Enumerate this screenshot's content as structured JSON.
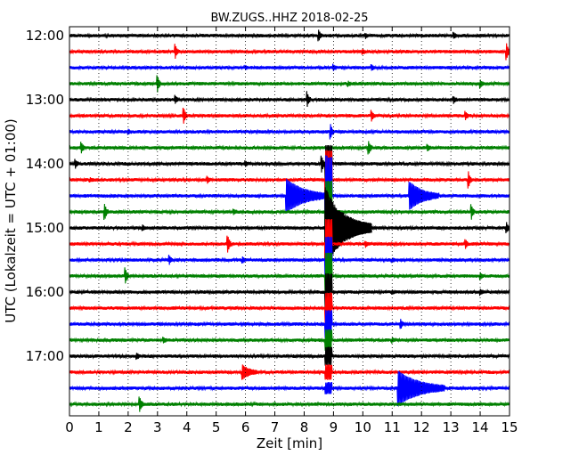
{
  "chart_data": {
    "type": "line",
    "title": "BW.ZUGS..HHZ 2018-02-25",
    "xlabel": "Zeit  [min]",
    "ylabel": "UTC (Lokalzeit = UTC + 01:00)",
    "xlim": [
      0,
      15
    ],
    "x_ticks": [
      "0",
      "1",
      "2",
      "3",
      "4",
      "5",
      "6",
      "7",
      "8",
      "9",
      "10",
      "11",
      "12",
      "13",
      "14",
      "15"
    ],
    "y_ticks": [
      "12:00",
      "13:00",
      "14:00",
      "15:00",
      "16:00",
      "17:00"
    ],
    "grid": "vertical dotted",
    "trace_interval_min": 15,
    "trace_colors": [
      "#000000",
      "#ff0000",
      "#0000ff",
      "#008000"
    ],
    "traces": [
      {
        "start": "12:00",
        "events": [
          {
            "x": 8.5,
            "amp": 0.6
          },
          {
            "x": 10.1,
            "amp": 0.25
          },
          {
            "x": 13.1,
            "amp": 0.3
          }
        ]
      },
      {
        "start": "12:15",
        "events": [
          {
            "x": 3.6,
            "amp": 0.9
          },
          {
            "x": 14.9,
            "amp": 1.0
          },
          {
            "x": 10.0,
            "amp": 0.3
          }
        ]
      },
      {
        "start": "12:30",
        "events": [
          {
            "x": 9.0,
            "amp": 0.35
          },
          {
            "x": 10.3,
            "amp": 0.3
          },
          {
            "x": 6.0,
            "amp": 0.2
          }
        ]
      },
      {
        "start": "12:45",
        "events": [
          {
            "x": 3.0,
            "amp": 1.0
          },
          {
            "x": 14.0,
            "amp": 0.5
          },
          {
            "x": 9.5,
            "amp": 0.25
          }
        ]
      },
      {
        "start": "13:00",
        "events": [
          {
            "x": 8.1,
            "amp": 1.0
          },
          {
            "x": 3.6,
            "amp": 0.5
          },
          {
            "x": 13.1,
            "amp": 0.35
          }
        ]
      },
      {
        "start": "13:15",
        "events": [
          {
            "x": 3.9,
            "amp": 0.9
          },
          {
            "x": 10.3,
            "amp": 0.6
          },
          {
            "x": 13.5,
            "amp": 0.5
          }
        ]
      },
      {
        "start": "13:30",
        "events": [
          {
            "x": 8.9,
            "amp": 0.9
          },
          {
            "x": 2.0,
            "amp": 0.3
          }
        ]
      },
      {
        "start": "13:45",
        "events": [
          {
            "x": 0.4,
            "amp": 0.7
          },
          {
            "x": 10.2,
            "amp": 0.8
          },
          {
            "x": 12.2,
            "amp": 0.4
          }
        ]
      },
      {
        "start": "14:00",
        "events": [
          {
            "x": 8.6,
            "amp": 1.0
          },
          {
            "x": 0.2,
            "amp": 0.5
          },
          {
            "x": 6.0,
            "amp": 0.3
          }
        ]
      },
      {
        "start": "14:15",
        "events": [
          {
            "x": 4.7,
            "amp": 0.4
          },
          {
            "x": 13.6,
            "amp": 1.0
          },
          {
            "x": 0.7,
            "amp": 0.2
          }
        ]
      },
      {
        "start": "14:30",
        "events": [
          {
            "x": 7.4,
            "amp": 2.2,
            "coda": 1.4
          },
          {
            "x": 11.6,
            "amp": 1.8,
            "coda": 1.0
          }
        ]
      },
      {
        "start": "14:45",
        "events": [
          {
            "x": 1.2,
            "amp": 1.0
          },
          {
            "x": 13.7,
            "amp": 0.9
          },
          {
            "x": 5.6,
            "amp": 0.3
          }
        ]
      },
      {
        "start": "15:00",
        "events": [
          {
            "x": 2.5,
            "amp": 0.3
          },
          {
            "x": 14.9,
            "amp": 0.6
          }
        ]
      },
      {
        "start": "15:15",
        "events": [
          {
            "x": 5.4,
            "amp": 1.0
          },
          {
            "x": 13.5,
            "amp": 0.5
          },
          {
            "x": 10.1,
            "amp": 0.3
          }
        ]
      },
      {
        "start": "15:30",
        "events": [
          {
            "x": 3.4,
            "amp": 0.5
          },
          {
            "x": 5.9,
            "amp": 0.3
          },
          {
            "x": 11.0,
            "amp": 0.2
          }
        ]
      },
      {
        "start": "15:45",
        "events": [
          {
            "x": 1.9,
            "amp": 1.0
          },
          {
            "x": 14.0,
            "amp": 0.4
          }
        ]
      },
      {
        "start": "16:00",
        "events": [
          {
            "x": 14.0,
            "amp": 0.3
          },
          {
            "x": 11.0,
            "amp": 0.2
          }
        ]
      },
      {
        "start": "16:15",
        "events": []
      },
      {
        "start": "16:30",
        "events": [
          {
            "x": 11.3,
            "amp": 0.5
          }
        ]
      },
      {
        "start": "16:45",
        "events": [
          {
            "x": 3.2,
            "amp": 0.3
          },
          {
            "x": 11.0,
            "amp": 0.25
          }
        ]
      },
      {
        "start": "17:00",
        "events": [
          {
            "x": 2.3,
            "amp": 0.3
          }
        ]
      },
      {
        "start": "17:15",
        "events": [
          {
            "x": 5.9,
            "amp": 0.9,
            "coda": 0.5
          }
        ]
      },
      {
        "start": "17:30",
        "events": [
          {
            "x": 11.2,
            "amp": 2.3,
            "coda": 1.6
          }
        ]
      },
      {
        "start": "17:45",
        "events": [
          {
            "x": 2.4,
            "amp": 0.9
          }
        ]
      }
    ],
    "main_event": {
      "start": "15:00",
      "x": 8.7,
      "duration_min": 1.6
    },
    "main_event_level_traces": [
      {
        "start": "14:00",
        "amp": 0.55
      },
      {
        "start": "14:15",
        "amp": 0.9
      },
      {
        "start": "14:30",
        "amp": 1.2
      },
      {
        "start": "14:45",
        "amp": 0.95
      },
      {
        "start": "15:00",
        "amp": 0.85
      },
      {
        "start": "15:15",
        "amp": 0.75
      },
      {
        "start": "15:30",
        "amp": 0.7
      },
      {
        "start": "15:45",
        "amp": 0.7
      },
      {
        "start": "16:00",
        "amp": 0.55
      },
      {
        "start": "16:15",
        "amp": 0.45
      },
      {
        "start": "16:30",
        "amp": 0.4
      },
      {
        "start": "16:45",
        "amp": 0.3
      },
      {
        "start": "17:00",
        "amp": 0.25
      },
      {
        "start": "17:15",
        "amp": 0.2
      },
      {
        "start": "17:30",
        "amp": 0.15
      }
    ]
  }
}
